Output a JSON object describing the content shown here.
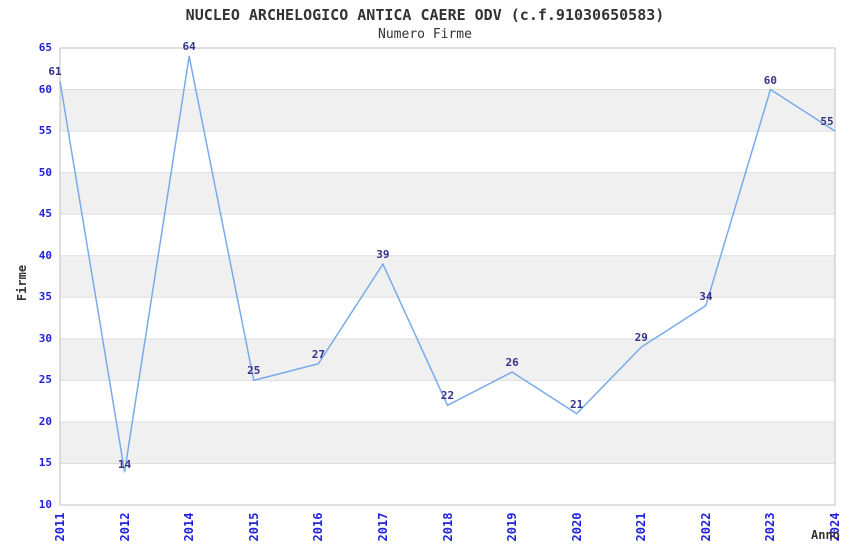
{
  "chart_data": {
    "type": "line",
    "title": "NUCLEO ARCHELOGICO ANTICA CAERE ODV (c.f.91030650583)",
    "subtitle": "Numero Firme",
    "xlabel": "Anno",
    "ylabel": "Firme",
    "categories": [
      "2011",
      "2012",
      "2014",
      "2015",
      "2016",
      "2017",
      "2018",
      "2019",
      "2020",
      "2021",
      "2022",
      "2023",
      "2024"
    ],
    "values": [
      61,
      14,
      64,
      25,
      27,
      39,
      22,
      26,
      21,
      29,
      34,
      60,
      55
    ],
    "ylim": [
      10,
      65
    ],
    "ytick_step": 5,
    "grid": "horizontal-alternating-bands",
    "legend": "none",
    "point_labels_visible": true,
    "colors": {
      "line": "#79abe8",
      "tick_label": "#2222dd",
      "point_label": "#34348a",
      "band": "#f0f0f0",
      "gridline": "#dddddd",
      "border": "#c0c0c0",
      "text": "#333333",
      "background": "#ffffff"
    }
  }
}
